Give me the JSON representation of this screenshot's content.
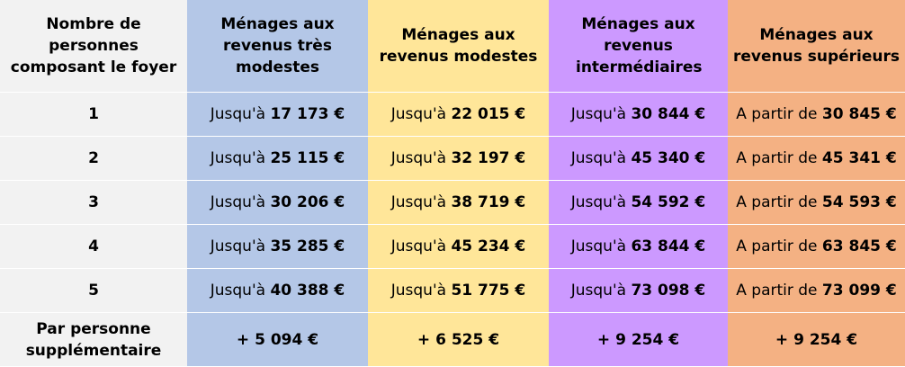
{
  "headers": [
    "Nombre de personnes composant le foyer",
    "Ménages aux revenus très modestes",
    "Ménages aux revenus modestes",
    "Ménages aux revenus intermédiaires",
    "Ménages aux revenus supérieurs"
  ],
  "colors": {
    "persons": "#f2f2f2",
    "tres_modestes": "#b4c7e7",
    "modestes": "#ffe699",
    "intermediaires": "#cc99ff",
    "superieurs": "#f4b183"
  },
  "prefix_upto": "Jusqu'à",
  "prefix_from": "A partir de",
  "rows": [
    {
      "persons": "1",
      "tres_modestes": "17 173 €",
      "modestes": "22 015 €",
      "intermediaires": "30 844 €",
      "superieurs": "30 845 €"
    },
    {
      "persons": "2",
      "tres_modestes": "25 115 €",
      "modestes": "32 197 €",
      "intermediaires": "45 340 €",
      "superieurs": "45 341 €"
    },
    {
      "persons": "3",
      "tres_modestes": "30 206 €",
      "modestes": "38 719 €",
      "intermediaires": "54 592 €",
      "superieurs": "54 593 €"
    },
    {
      "persons": "4",
      "tres_modestes": "35 285 €",
      "modestes": "45 234 €",
      "intermediaires": "63 844 €",
      "superieurs": "63 845 €"
    },
    {
      "persons": "5",
      "tres_modestes": "40 388 €",
      "modestes": "51 775 €",
      "intermediaires": "73 098 €",
      "superieurs": "73 099 €"
    }
  ],
  "extra": {
    "label": "Par personne supplémentaire",
    "tres_modestes": "+ 5 094 €",
    "modestes": "+ 6 525 €",
    "intermediaires": "+ 9 254 €",
    "superieurs": "+ 9 254 €"
  }
}
